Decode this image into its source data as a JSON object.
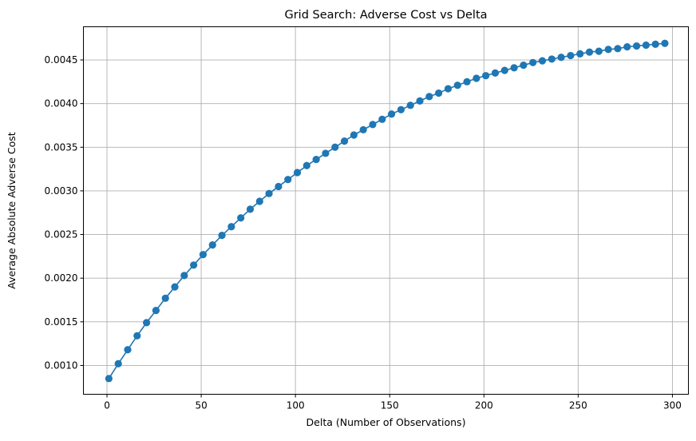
{
  "chart_data": {
    "type": "line",
    "title": "Grid Search: Adverse Cost vs Delta",
    "xlabel": "Delta (Number of Observations)",
    "ylabel": "Average Absolute Adverse Cost",
    "xlim": [
      -12.5,
      308.5
    ],
    "ylim": [
      0.00067,
      0.00488
    ],
    "xticks": [
      0,
      50,
      100,
      150,
      200,
      250,
      300
    ],
    "xtick_labels": [
      "0",
      "50",
      "100",
      "150",
      "200",
      "250",
      "300"
    ],
    "yticks": [
      0.001,
      0.0015,
      0.002,
      0.0025,
      0.003,
      0.0035,
      0.004,
      0.0045
    ],
    "ytick_labels": [
      "0.0010",
      "0.0015",
      "0.0020",
      "0.0025",
      "0.0030",
      "0.0035",
      "0.0040",
      "0.0045"
    ],
    "grid": true,
    "color": "#1f77b4",
    "marker": "circle",
    "series": [
      {
        "x": [
          1,
          6,
          11,
          16,
          21,
          26,
          31,
          36,
          41,
          46,
          51,
          56,
          61,
          66,
          71,
          76,
          81,
          86,
          91,
          96,
          101,
          106,
          111,
          116,
          121,
          126,
          131,
          136,
          141,
          146,
          151,
          156,
          161,
          166,
          171,
          176,
          181,
          186,
          191,
          196,
          201,
          206,
          211,
          216,
          221,
          226,
          231,
          236,
          241,
          246,
          251,
          256,
          261,
          266,
          271,
          276,
          281,
          286,
          291,
          296
        ],
        "y": [
          0.00085,
          0.00102,
          0.00118,
          0.00134,
          0.00149,
          0.00163,
          0.00177,
          0.0019,
          0.00203,
          0.00215,
          0.00227,
          0.00238,
          0.00249,
          0.00259,
          0.00269,
          0.00279,
          0.00288,
          0.00297,
          0.00305,
          0.00313,
          0.00321,
          0.00329,
          0.00336,
          0.00343,
          0.0035,
          0.00357,
          0.00364,
          0.0037,
          0.00376,
          0.00382,
          0.00388,
          0.00393,
          0.00398,
          0.00403,
          0.00408,
          0.00412,
          0.00417,
          0.00421,
          0.00425,
          0.00429,
          0.00432,
          0.00435,
          0.00438,
          0.00441,
          0.00444,
          0.00447,
          0.00449,
          0.00451,
          0.00453,
          0.00455,
          0.00457,
          0.00459,
          0.0046,
          0.00462,
          0.00463,
          0.00465,
          0.00466,
          0.00467,
          0.00468,
          0.00469
        ]
      }
    ]
  }
}
